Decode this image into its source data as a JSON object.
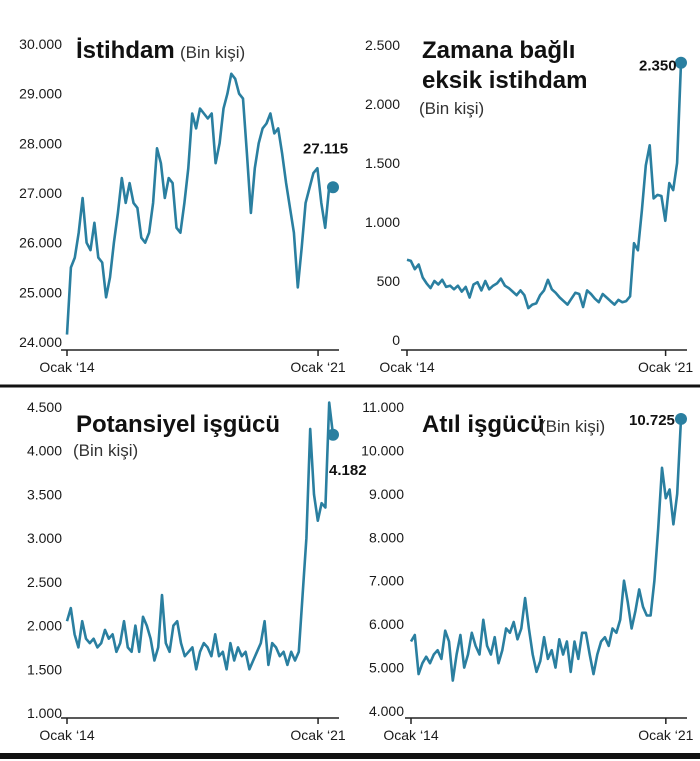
{
  "colors": {
    "line": "#2a7fa0",
    "axis": "#222222",
    "divider": "#111111"
  },
  "chart_data": [
    {
      "type": "line",
      "title": "İstihdam",
      "unit": "(Bin kişi)",
      "ylim": [
        24000,
        30000
      ],
      "yticks": [
        24000,
        25000,
        26000,
        27000,
        28000,
        29000,
        30000
      ],
      "ytick_labels": [
        "24.000",
        "25.000",
        "26.000",
        "27.000",
        "28.000",
        "29.000",
        "30.000"
      ],
      "xticks": [
        {
          "x": 0,
          "label": "Ocak ‘14"
        },
        {
          "x": 84,
          "label": "Ocak ‘21"
        }
      ],
      "xlim": [
        0,
        89
      ],
      "end_label": "27.115",
      "values": [
        24150,
        25500,
        25700,
        26200,
        26900,
        26000,
        25850,
        26400,
        25700,
        25600,
        24900,
        25300,
        26000,
        26600,
        27300,
        26800,
        27200,
        26800,
        26700,
        26100,
        26000,
        26200,
        26800,
        27900,
        27600,
        26900,
        27300,
        27200,
        26300,
        26200,
        26800,
        27500,
        28600,
        28300,
        28700,
        28600,
        28500,
        28600,
        27600,
        28000,
        28700,
        29000,
        29400,
        29300,
        29000,
        28900,
        27800,
        26600,
        27500,
        28000,
        28300,
        28400,
        28600,
        28200,
        28300,
        27800,
        27200,
        26700,
        26200,
        25100,
        25900,
        26800,
        27100,
        27400,
        27500,
        26800,
        26300,
        27100,
        27115
      ],
      "series": [
        {
          "name": "",
          "values": []
        }
      ]
    },
    {
      "type": "line",
      "title": "Zamana bağlı eksik istihdam",
      "title_lines": [
        "Zamana bağlı",
        "eksik istihdam"
      ],
      "unit": "(Bin kişi)",
      "ylim": [
        0,
        2500
      ],
      "yticks": [
        0,
        500,
        1000,
        1500,
        2000,
        2500
      ],
      "ytick_labels": [
        "0",
        "500",
        "1.000",
        "1.500",
        "2.000",
        "2.500"
      ],
      "xticks": [
        {
          "x": 0,
          "label": "Ocak ‘14"
        },
        {
          "x": 84,
          "label": "Ocak ‘21"
        }
      ],
      "xlim": [
        0,
        89
      ],
      "end_label": "2.350",
      "values": [
        680,
        670,
        600,
        640,
        530,
        480,
        440,
        500,
        470,
        510,
        450,
        460,
        430,
        460,
        410,
        450,
        360,
        470,
        490,
        420,
        500,
        430,
        460,
        480,
        520,
        460,
        440,
        410,
        380,
        420,
        380,
        270,
        300,
        310,
        380,
        420,
        510,
        430,
        400,
        360,
        330,
        300,
        350,
        400,
        390,
        280,
        420,
        390,
        350,
        320,
        390,
        360,
        330,
        300,
        340,
        320,
        330,
        370,
        820,
        760,
        1100,
        1480,
        1650,
        1200,
        1230,
        1220,
        1010,
        1330,
        1270,
        1500,
        2350
      ],
      "series": [
        {
          "name": "",
          "values": []
        }
      ]
    },
    {
      "type": "line",
      "title": "Potansiyel işgücü",
      "unit": "(Bin kişi)",
      "ylim": [
        1000,
        4500
      ],
      "yticks": [
        1000,
        1500,
        2000,
        2500,
        3000,
        3500,
        4000,
        4500
      ],
      "ytick_labels": [
        "1.000",
        "1.500",
        "2.000",
        "2.500",
        "3.000",
        "3.500",
        "4.000",
        "4.500"
      ],
      "xticks": [
        {
          "x": 0,
          "label": "Ocak ‘14"
        },
        {
          "x": 84,
          "label": "Ocak ‘21"
        }
      ],
      "xlim": [
        0,
        89
      ],
      "end_label": "4.182",
      "values": [
        2050,
        2200,
        1900,
        1750,
        2050,
        1850,
        1800,
        1850,
        1750,
        1800,
        1950,
        1850,
        1900,
        1700,
        1800,
        2050,
        1750,
        1700,
        2000,
        1700,
        2100,
        2000,
        1850,
        1600,
        1750,
        2350,
        1800,
        1700,
        2000,
        2050,
        1800,
        1650,
        1700,
        1750,
        1500,
        1700,
        1800,
        1750,
        1650,
        1900,
        1650,
        1700,
        1500,
        1800,
        1600,
        1750,
        1650,
        1700,
        1500,
        1600,
        1700,
        1800,
        2050,
        1550,
        1800,
        1750,
        1650,
        1700,
        1550,
        1700,
        1600,
        1700,
        2350,
        3000,
        4250,
        3500,
        3200,
        3400,
        3350,
        4550,
        4182
      ],
      "series": [
        {
          "name": "",
          "values": []
        }
      ]
    },
    {
      "type": "line",
      "title": "Atıl işgücü",
      "unit": "(Bin kişi)",
      "ylim": [
        4000,
        11000
      ],
      "yticks": [
        4000,
        5000,
        6000,
        7000,
        8000,
        9000,
        10000,
        11000
      ],
      "ytick_labels": [
        "4.000",
        "5.000",
        "6.000",
        "7.000",
        "8.000",
        "9.000",
        "10.000",
        "11.000"
      ],
      "xticks": [
        {
          "x": 0,
          "label": "Ocak ‘14"
        },
        {
          "x": 84,
          "label": "Ocak ‘21"
        }
      ],
      "xlim": [
        0,
        89
      ],
      "end_label": "10.725",
      "values": [
        5600,
        5750,
        4850,
        5100,
        5250,
        5100,
        5300,
        5400,
        5200,
        5850,
        5600,
        4700,
        5300,
        5750,
        5000,
        5300,
        5800,
        5500,
        5300,
        6100,
        5500,
        5300,
        5700,
        5100,
        5400,
        5900,
        5800,
        6050,
        5650,
        5900,
        6600,
        5900,
        5300,
        4900,
        5150,
        5700,
        5200,
        5400,
        5000,
        5650,
        5300,
        5600,
        4900,
        5600,
        5200,
        5800,
        5800,
        5300,
        4850,
        5300,
        5600,
        5700,
        5500,
        5900,
        5800,
        6100,
        7000,
        6500,
        5900,
        6300,
        6800,
        6400,
        6200,
        6200,
        7000,
        8200,
        9600,
        8900,
        9100,
        8300,
        9000,
        10725
      ],
      "series": [
        {
          "name": "",
          "values": []
        }
      ]
    }
  ]
}
